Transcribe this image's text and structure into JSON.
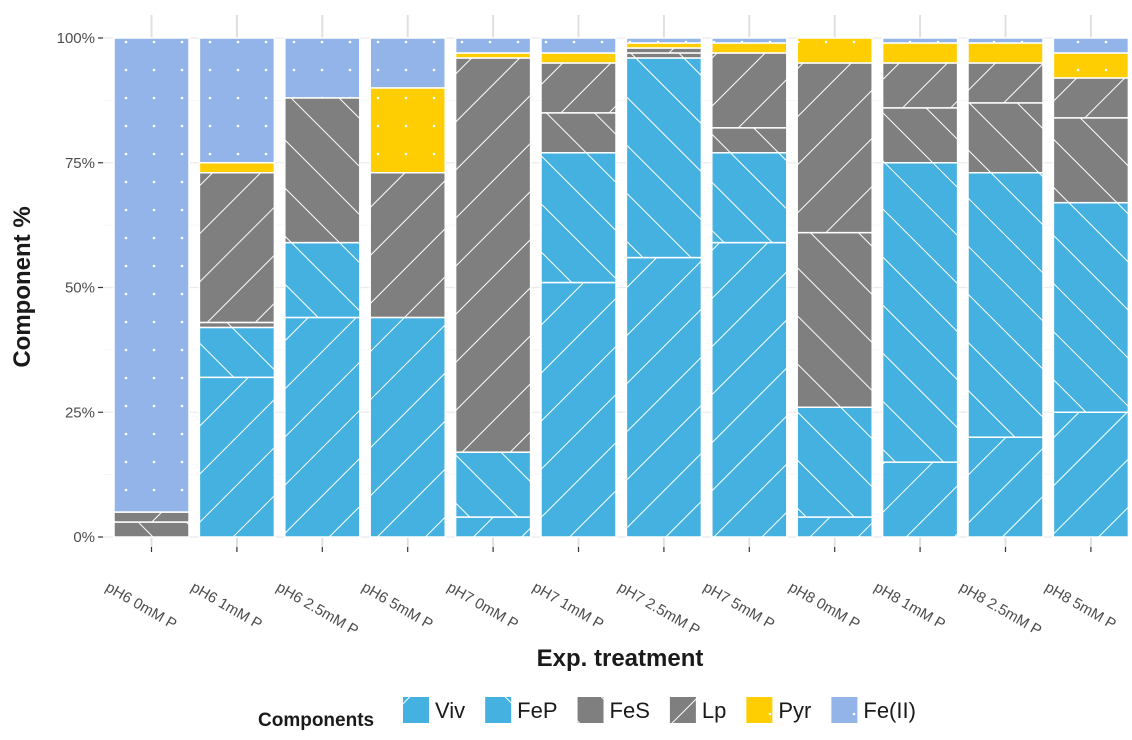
{
  "chart_data": {
    "type": "bar",
    "stacked": true,
    "ylabel": "Component %",
    "xlabel": "Exp. treatment",
    "ylim": [
      0,
      100
    ],
    "y_ticks": [
      {
        "value": 0,
        "label": "0%"
      },
      {
        "value": 25,
        "label": "25%"
      },
      {
        "value": 50,
        "label": "50%"
      },
      {
        "value": 75,
        "label": "75%"
      },
      {
        "value": 100,
        "label": "100%"
      }
    ],
    "grid": true,
    "legend_title": "Components",
    "legend_position": "bottom",
    "categories": [
      "pH6 0mM P",
      "pH6 1mM P",
      "pH6 2.5mM P",
      "pH6 5mM P",
      "pH7 0mM P",
      "pH7 1mM P",
      "pH7 2.5mM P",
      "pH7 5mM P",
      "pH8 0mM P",
      "pH8 1mM P",
      "pH8 2.5mM P",
      "pH8 5mM P"
    ],
    "series": [
      {
        "name": "Viv",
        "color": "#44b1e0",
        "pattern": "stripe-ne",
        "values": [
          0,
          32,
          44,
          44,
          4,
          51,
          56,
          59,
          4,
          15,
          20,
          25
        ]
      },
      {
        "name": "FeP",
        "color": "#44b1e0",
        "pattern": "stripe-nw",
        "values": [
          0,
          10,
          15,
          0,
          13,
          26,
          40,
          18,
          22,
          60,
          53,
          42
        ]
      },
      {
        "name": "FeS",
        "color": "#7f7f7f",
        "pattern": "stripe-nw",
        "values": [
          3,
          1,
          29,
          0,
          0,
          8,
          1,
          5,
          35,
          11,
          14,
          17
        ]
      },
      {
        "name": "Lp",
        "color": "#7f7f7f",
        "pattern": "stripe-ne",
        "values": [
          2,
          30,
          0,
          29,
          79,
          10,
          1,
          15,
          34,
          9,
          8,
          8
        ]
      },
      {
        "name": "Pyr",
        "color": "#fece02",
        "pattern": "dots",
        "values": [
          0,
          2,
          0,
          17,
          1,
          2,
          1,
          2,
          5,
          4,
          4,
          5
        ]
      },
      {
        "name": "Fe(II)",
        "color": "#93b4e8",
        "pattern": "dots",
        "values": [
          95,
          25,
          12,
          10,
          3,
          3,
          1,
          1,
          0,
          1,
          1,
          3
        ]
      }
    ]
  }
}
